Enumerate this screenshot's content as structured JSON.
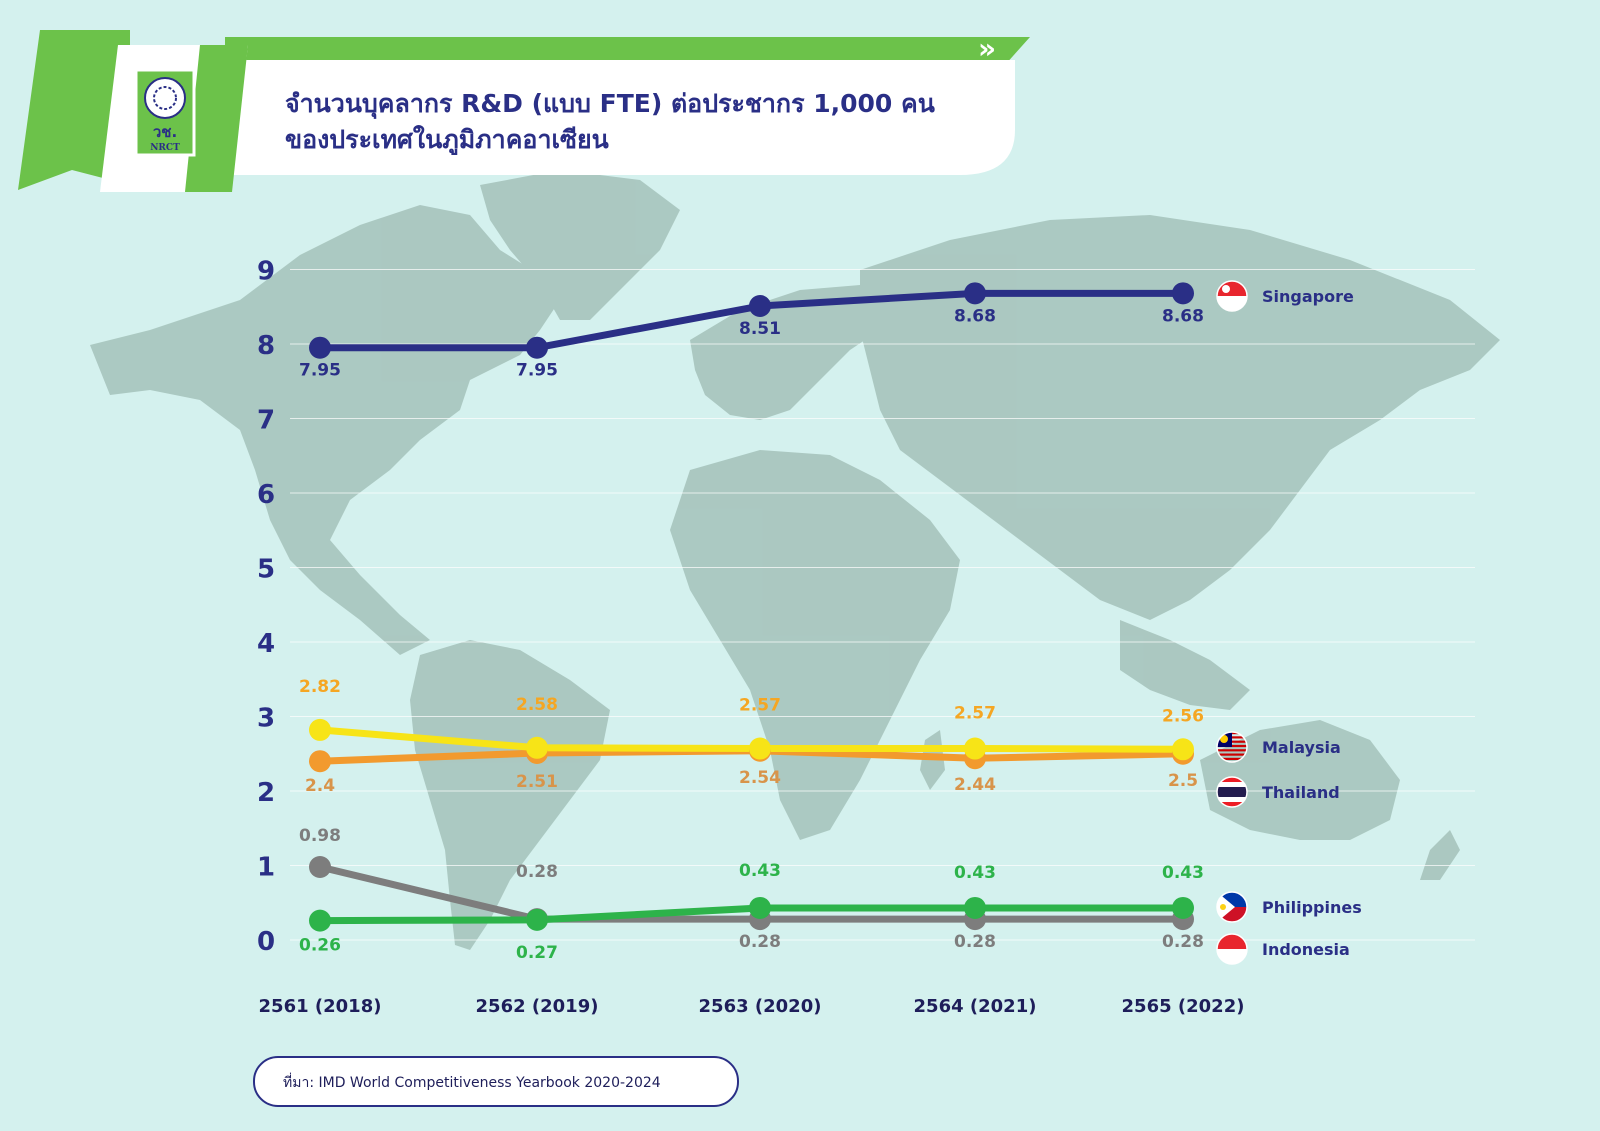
{
  "header": {
    "title_line1": "จำนวนบุคลากร R&D (แบบ FTE) ต่อประชากร 1,000 คน",
    "title_line2": "ของประเทศในภูมิภาคอาเซียน",
    "logo_text": "วช.",
    "logo_subtext": "NRCT",
    "chevrons": "»"
  },
  "source": "ที่มา: IMD World Competitiveness Yearbook 2020-2024",
  "colors": {
    "background": "#d4f1ee",
    "map": "#a9c6bf",
    "green": "#6cc24a",
    "navy": "#2a2f86"
  },
  "chart_data": {
    "type": "line",
    "x": [
      "2561 (2018)",
      "2562 (2019)",
      "2563 (2020)",
      "2564 (2021)",
      "2565 (2022)"
    ],
    "yticks": [
      "0",
      "1",
      "2",
      "3",
      "4",
      "5",
      "6",
      "7",
      "8",
      "9"
    ],
    "ylim": [
      0,
      9
    ],
    "grid": true,
    "series": [
      {
        "name": "Singapore",
        "color": "#2a2f86",
        "label_color": "#2a2f86",
        "flag": "singapore-flag-icon",
        "values": [
          7.95,
          7.95,
          8.51,
          8.68,
          8.68
        ],
        "labels": [
          "7.95",
          "7.95",
          "8.51",
          "8.68",
          "8.68"
        ]
      },
      {
        "name": "Malaysia",
        "color": "#f7e417",
        "label_color": "#f5a623",
        "flag": "malaysia-flag-icon",
        "values": [
          2.82,
          2.58,
          2.57,
          2.57,
          2.56
        ],
        "labels": [
          "2.82",
          "2.58",
          "2.57",
          "2.57",
          "2.56"
        ]
      },
      {
        "name": "Thailand",
        "color": "#f29a2e",
        "label_color": "#d8944a",
        "flag": "thailand-flag-icon",
        "values": [
          2.4,
          2.51,
          2.54,
          2.44,
          2.5
        ],
        "labels": [
          "2.4",
          "2.51",
          "2.54",
          "2.44",
          "2.5"
        ]
      },
      {
        "name": "Philippines",
        "color": "#2db34a",
        "label_color": "#2db34a",
        "flag": "philippines-flag-icon",
        "values": [
          0.26,
          0.27,
          0.43,
          0.43,
          0.43
        ],
        "labels": [
          "0.26",
          "0.27",
          "0.43",
          "0.43",
          "0.43"
        ]
      },
      {
        "name": "Indonesia",
        "color": "#7d7d7d",
        "label_color": "#7d7d7d",
        "flag": "indonesia-flag-icon",
        "values": [
          0.98,
          0.28,
          0.28,
          0.28,
          0.28
        ],
        "labels": [
          "0.98",
          "0.28",
          "0.28",
          "0.28",
          "0.28"
        ]
      }
    ]
  }
}
